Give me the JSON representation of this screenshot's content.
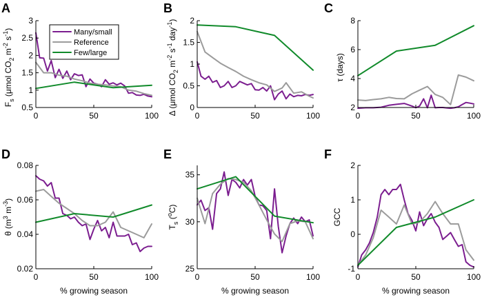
{
  "colors": {
    "many_small": "#7b1d8f",
    "reference": "#9b9b9b",
    "few_large": "#108a2a"
  },
  "legend": [
    "Many/small",
    "Reference",
    "Few/large"
  ],
  "chart_data": [
    {
      "type": "line",
      "panel": "A",
      "ylabel": "Fs (μmol CO2 m-2 s-1)",
      "ylabel_parts": {
        "main": "F",
        "sub": "s",
        "unit_open": " (μmol CO",
        "unit_sub": "2",
        "unit_mid": " m",
        "unit_sup1": "-2",
        "unit_mid2": " s",
        "unit_sup2": "-1",
        "unit_close": ")"
      },
      "xlabel": "",
      "xlim": [
        0,
        100
      ],
      "ylim": [
        0.5,
        3
      ],
      "yticks": [
        0.5,
        1,
        1.5,
        2,
        2.5,
        3
      ],
      "xticks": [
        0,
        50,
        100
      ],
      "show_legend": true,
      "legend_position": "top-center",
      "series": [
        {
          "name": "Many/small",
          "key": "many_small",
          "x": [
            0,
            3.3,
            6.7,
            10,
            13.3,
            16.7,
            20,
            23.3,
            26.7,
            30,
            33.3,
            36.7,
            40,
            43.3,
            46.7,
            50,
            53.3,
            56.7,
            60,
            63.3,
            66.7,
            70,
            73.3,
            76.7,
            80,
            83.3,
            86.7,
            90,
            93.3,
            96.7,
            100
          ],
          "y": [
            2.65,
            1.93,
            1.92,
            1.55,
            1.85,
            1.36,
            1.6,
            1.34,
            1.55,
            1.3,
            1.47,
            1.42,
            1.44,
            1.1,
            1.32,
            1.2,
            1.17,
            1.1,
            1.3,
            1.17,
            1.21,
            1.15,
            1.2,
            1.12,
            0.91,
            0.93,
            0.86,
            0.85,
            0.88,
            0.83,
            0.81
          ]
        },
        {
          "name": "Reference",
          "key": "reference",
          "x": [
            0,
            6.7,
            13.3,
            20,
            26.7,
            33.3,
            40,
            46.7,
            53.3,
            60,
            66.7,
            73.3,
            80,
            86.7,
            93.3,
            100
          ],
          "y": [
            1.8,
            1.5,
            1.5,
            1.43,
            1.4,
            1.32,
            1.27,
            1.2,
            1.17,
            1.15,
            1.12,
            1.1,
            1.0,
            0.97,
            0.9,
            0.85
          ]
        },
        {
          "name": "Few/large",
          "key": "few_large",
          "x": [
            0,
            33.3,
            66.7,
            100
          ],
          "y": [
            1.05,
            1.23,
            1.07,
            1.14
          ]
        }
      ]
    },
    {
      "type": "line",
      "panel": "B",
      "ylabel": "Δ (μmol CO2 m-2 s-1 day-1)",
      "xlabel": "",
      "xlim": [
        0,
        100
      ],
      "ylim": [
        0,
        2
      ],
      "yticks": [
        0,
        0.5,
        1,
        1.5,
        2
      ],
      "xticks": [
        0,
        50,
        100
      ],
      "series": [
        {
          "name": "Many/small",
          "key": "many_small",
          "x": [
            0,
            3.3,
            6.7,
            10,
            13.3,
            16.7,
            20,
            23.3,
            26.7,
            30,
            33.3,
            36.7,
            40,
            43.3,
            46.7,
            50,
            53.3,
            56.7,
            60,
            63.3,
            66.7,
            70,
            73.3,
            76.7,
            80,
            83.3,
            86.7,
            90,
            93.3,
            96.7,
            100
          ],
          "y": [
            1.05,
            0.72,
            0.65,
            0.72,
            0.58,
            0.62,
            0.46,
            0.5,
            0.6,
            0.46,
            0.5,
            0.6,
            0.56,
            0.52,
            0.55,
            0.41,
            0.4,
            0.46,
            0.38,
            0.5,
            0.18,
            0.31,
            0.38,
            0.2,
            0.31,
            0.25,
            0.28,
            0.27,
            0.3,
            0.28,
            0.3
          ]
        },
        {
          "name": "Reference",
          "key": "reference",
          "x": [
            0,
            6.7,
            13.3,
            20,
            26.7,
            33.3,
            40,
            46.7,
            53.3,
            60,
            66.7,
            73.3,
            76.7,
            83.3,
            90,
            96.7,
            100
          ],
          "y": [
            1.75,
            1.28,
            1.15,
            1.02,
            0.92,
            0.83,
            0.72,
            0.64,
            0.57,
            0.52,
            0.37,
            0.45,
            0.57,
            0.33,
            0.36,
            0.26,
            0.22
          ]
        },
        {
          "name": "Few/large",
          "key": "few_large",
          "x": [
            0,
            33.3,
            66.7,
            100
          ],
          "y": [
            1.9,
            1.86,
            1.66,
            0.86
          ]
        }
      ]
    },
    {
      "type": "line",
      "panel": "C",
      "ylabel": "τ (days)",
      "xlabel": "",
      "xlim": [
        0,
        100
      ],
      "ylim": [
        2,
        8
      ],
      "yticks": [
        2,
        4,
        6,
        8
      ],
      "xticks": [
        0,
        50,
        100
      ],
      "series": [
        {
          "name": "Many/small",
          "key": "many_small",
          "x": [
            0,
            6.7,
            13.3,
            20,
            26.7,
            33.3,
            40,
            46.7,
            50,
            53.3,
            56.7,
            60,
            63.3,
            66.7,
            70,
            73.3,
            76.7,
            80,
            83.3,
            86.7,
            90,
            93.3,
            96.7,
            100
          ],
          "y": [
            1.95,
            1.98,
            1.98,
            2.02,
            2.15,
            2.22,
            2.28,
            2.1,
            1.98,
            2.1,
            2.6,
            1.98,
            2.85,
            1.98,
            2.0,
            2.0,
            1.97,
            1.95,
            1.98,
            2.05,
            2.2,
            2.35,
            2.3,
            2.25
          ]
        },
        {
          "name": "Reference",
          "key": "reference",
          "x": [
            0,
            6.7,
            13.3,
            20,
            26.7,
            33.3,
            40,
            46.7,
            53.3,
            60,
            66.7,
            73.3,
            80,
            86.7,
            93.3,
            100
          ],
          "y": [
            2.52,
            2.48,
            2.55,
            2.6,
            2.7,
            2.62,
            2.6,
            2.95,
            3.2,
            3.45,
            2.9,
            2.7,
            2.2,
            4.25,
            4.1,
            3.85
          ]
        },
        {
          "name": "Few/large",
          "key": "few_large",
          "x": [
            0,
            33.3,
            66.7,
            100
          ],
          "y": [
            4.2,
            5.9,
            6.3,
            7.65
          ]
        }
      ]
    },
    {
      "type": "line",
      "panel": "D",
      "ylabel": "θ (m3 m-3)",
      "xlabel": "% growing season",
      "xlim": [
        0,
        100
      ],
      "ylim": [
        0.02,
        0.08
      ],
      "yticks": [
        0.02,
        0.04,
        0.06,
        0.08
      ],
      "xticks": [
        0,
        50,
        100
      ],
      "series": [
        {
          "name": "Many/small",
          "key": "many_small",
          "x": [
            0,
            3.3,
            6.7,
            10,
            13.3,
            16.7,
            20,
            23.3,
            26.7,
            30,
            33.3,
            36.7,
            40,
            43.3,
            46.7,
            50,
            53.3,
            56.7,
            60,
            63.3,
            66.7,
            70,
            73.3,
            76.7,
            80,
            83.3,
            86.7,
            90,
            93.3,
            96.7,
            100
          ],
          "y": [
            0.074,
            0.072,
            0.071,
            0.068,
            0.07,
            0.061,
            0.061,
            0.052,
            0.051,
            0.049,
            0.05,
            0.047,
            0.045,
            0.046,
            0.037,
            0.043,
            0.048,
            0.042,
            0.044,
            0.038,
            0.047,
            0.039,
            0.039,
            0.039,
            0.04,
            0.034,
            0.035,
            0.03,
            0.032,
            0.033,
            0.033
          ]
        },
        {
          "name": "Reference",
          "key": "reference",
          "x": [
            0,
            6.7,
            13.3,
            20,
            26.7,
            33.3,
            40,
            46.7,
            53.3,
            60,
            66.7,
            73.3,
            80,
            86.7,
            93.3,
            100
          ],
          "y": [
            0.065,
            0.066,
            0.062,
            0.058,
            0.055,
            0.052,
            0.048,
            0.045,
            0.045,
            0.047,
            0.053,
            0.044,
            0.042,
            0.04,
            0.038,
            0.046
          ]
        },
        {
          "name": "Few/large",
          "key": "few_large",
          "x": [
            0,
            33.3,
            66.7,
            100
          ],
          "y": [
            0.047,
            0.052,
            0.05,
            0.057
          ]
        }
      ]
    },
    {
      "type": "line",
      "panel": "E",
      "ylabel": "Ts (°C)",
      "xlabel": "% growing season",
      "xlim": [
        0,
        100
      ],
      "ylim": [
        25,
        36
      ],
      "yticks": [
        25,
        30,
        35
      ],
      "xticks": [
        0,
        50,
        100
      ],
      "series": [
        {
          "name": "Many/small",
          "key": "many_small",
          "x": [
            0,
            3.3,
            6.7,
            10,
            13.3,
            16.7,
            20,
            23.3,
            26.7,
            30,
            33.3,
            36.7,
            40,
            43.3,
            46.7,
            50,
            53.3,
            56.7,
            60,
            63.3,
            66.7,
            70,
            73.3,
            76.7,
            80,
            83.3,
            86.7,
            90,
            93.3,
            96.7,
            100
          ],
          "y": [
            31.8,
            32.3,
            31.2,
            31.5,
            29.2,
            33.0,
            33.5,
            35.3,
            32.8,
            34.5,
            34.2,
            33.6,
            34.5,
            33.9,
            34.5,
            32.7,
            31.8,
            31.7,
            31.2,
            28.2,
            33.5,
            29.5,
            26.7,
            28.5,
            29.8,
            30.4,
            29.8,
            30.5,
            30.0,
            30.2,
            28.5
          ]
        },
        {
          "name": "Reference",
          "key": "reference",
          "x": [
            0,
            6.7,
            13.3,
            20,
            26.7,
            33.3,
            40,
            46.7,
            53.3,
            60,
            66.7,
            73.3,
            80,
            86.7,
            93.3,
            100
          ],
          "y": [
            32.5,
            29.8,
            33.0,
            34.0,
            34.6,
            34.5,
            34.2,
            33.3,
            31.8,
            30.2,
            28.7,
            27.9,
            29.8,
            30.1,
            30.0,
            28.2
          ]
        },
        {
          "name": "Few/large",
          "key": "few_large",
          "x": [
            0,
            33.3,
            66.7,
            100
          ],
          "y": [
            33.5,
            34.8,
            30.6,
            29.9
          ]
        }
      ]
    },
    {
      "type": "line",
      "panel": "F",
      "ylabel": "GCC",
      "xlabel": "% growing season",
      "xlim": [
        0,
        100
      ],
      "ylim": [
        -1,
        2
      ],
      "yticks": [
        -1,
        0,
        1,
        2
      ],
      "xticks": [
        0,
        50,
        100
      ],
      "series": [
        {
          "name": "Many/small",
          "key": "many_small",
          "x": [
            0,
            3.3,
            6.7,
            10,
            13.3,
            16.7,
            20,
            23.3,
            26.7,
            30,
            33.3,
            36.7,
            40,
            43.3,
            46.7,
            50,
            53.3,
            56.7,
            60,
            63.3,
            66.7,
            70,
            73.3,
            76.7,
            80,
            83.3,
            86.7,
            90,
            93.3,
            96.7,
            100
          ],
          "y": [
            -0.95,
            -0.6,
            -0.45,
            -0.25,
            0.05,
            0.5,
            1.15,
            1.3,
            1.15,
            1.3,
            1.3,
            1.45,
            1.0,
            0.6,
            0.4,
            0.1,
            0.65,
            0.25,
            0.45,
            0.6,
            0.35,
            0.2,
            -0.15,
            -0.05,
            0.05,
            -0.15,
            -0.35,
            -0.3,
            -0.8,
            -0.9,
            -0.95
          ]
        },
        {
          "name": "Reference",
          "key": "reference",
          "x": [
            0,
            6.7,
            13.3,
            20,
            26.7,
            33.3,
            40,
            46.7,
            53.3,
            60,
            66.7,
            73.3,
            80,
            86.7,
            93.3,
            100
          ],
          "y": [
            -0.9,
            -0.6,
            -0.1,
            0.7,
            0.5,
            0.3,
            0.85,
            0.3,
            0.35,
            0.6,
            0.95,
            0.6,
            0.3,
            0.3,
            -0.45,
            -0.75
          ]
        },
        {
          "name": "Few/large",
          "key": "few_large",
          "x": [
            0,
            33.3,
            66.7,
            100
          ],
          "y": [
            -0.9,
            0.2,
            0.5,
            1.0
          ]
        }
      ]
    }
  ]
}
